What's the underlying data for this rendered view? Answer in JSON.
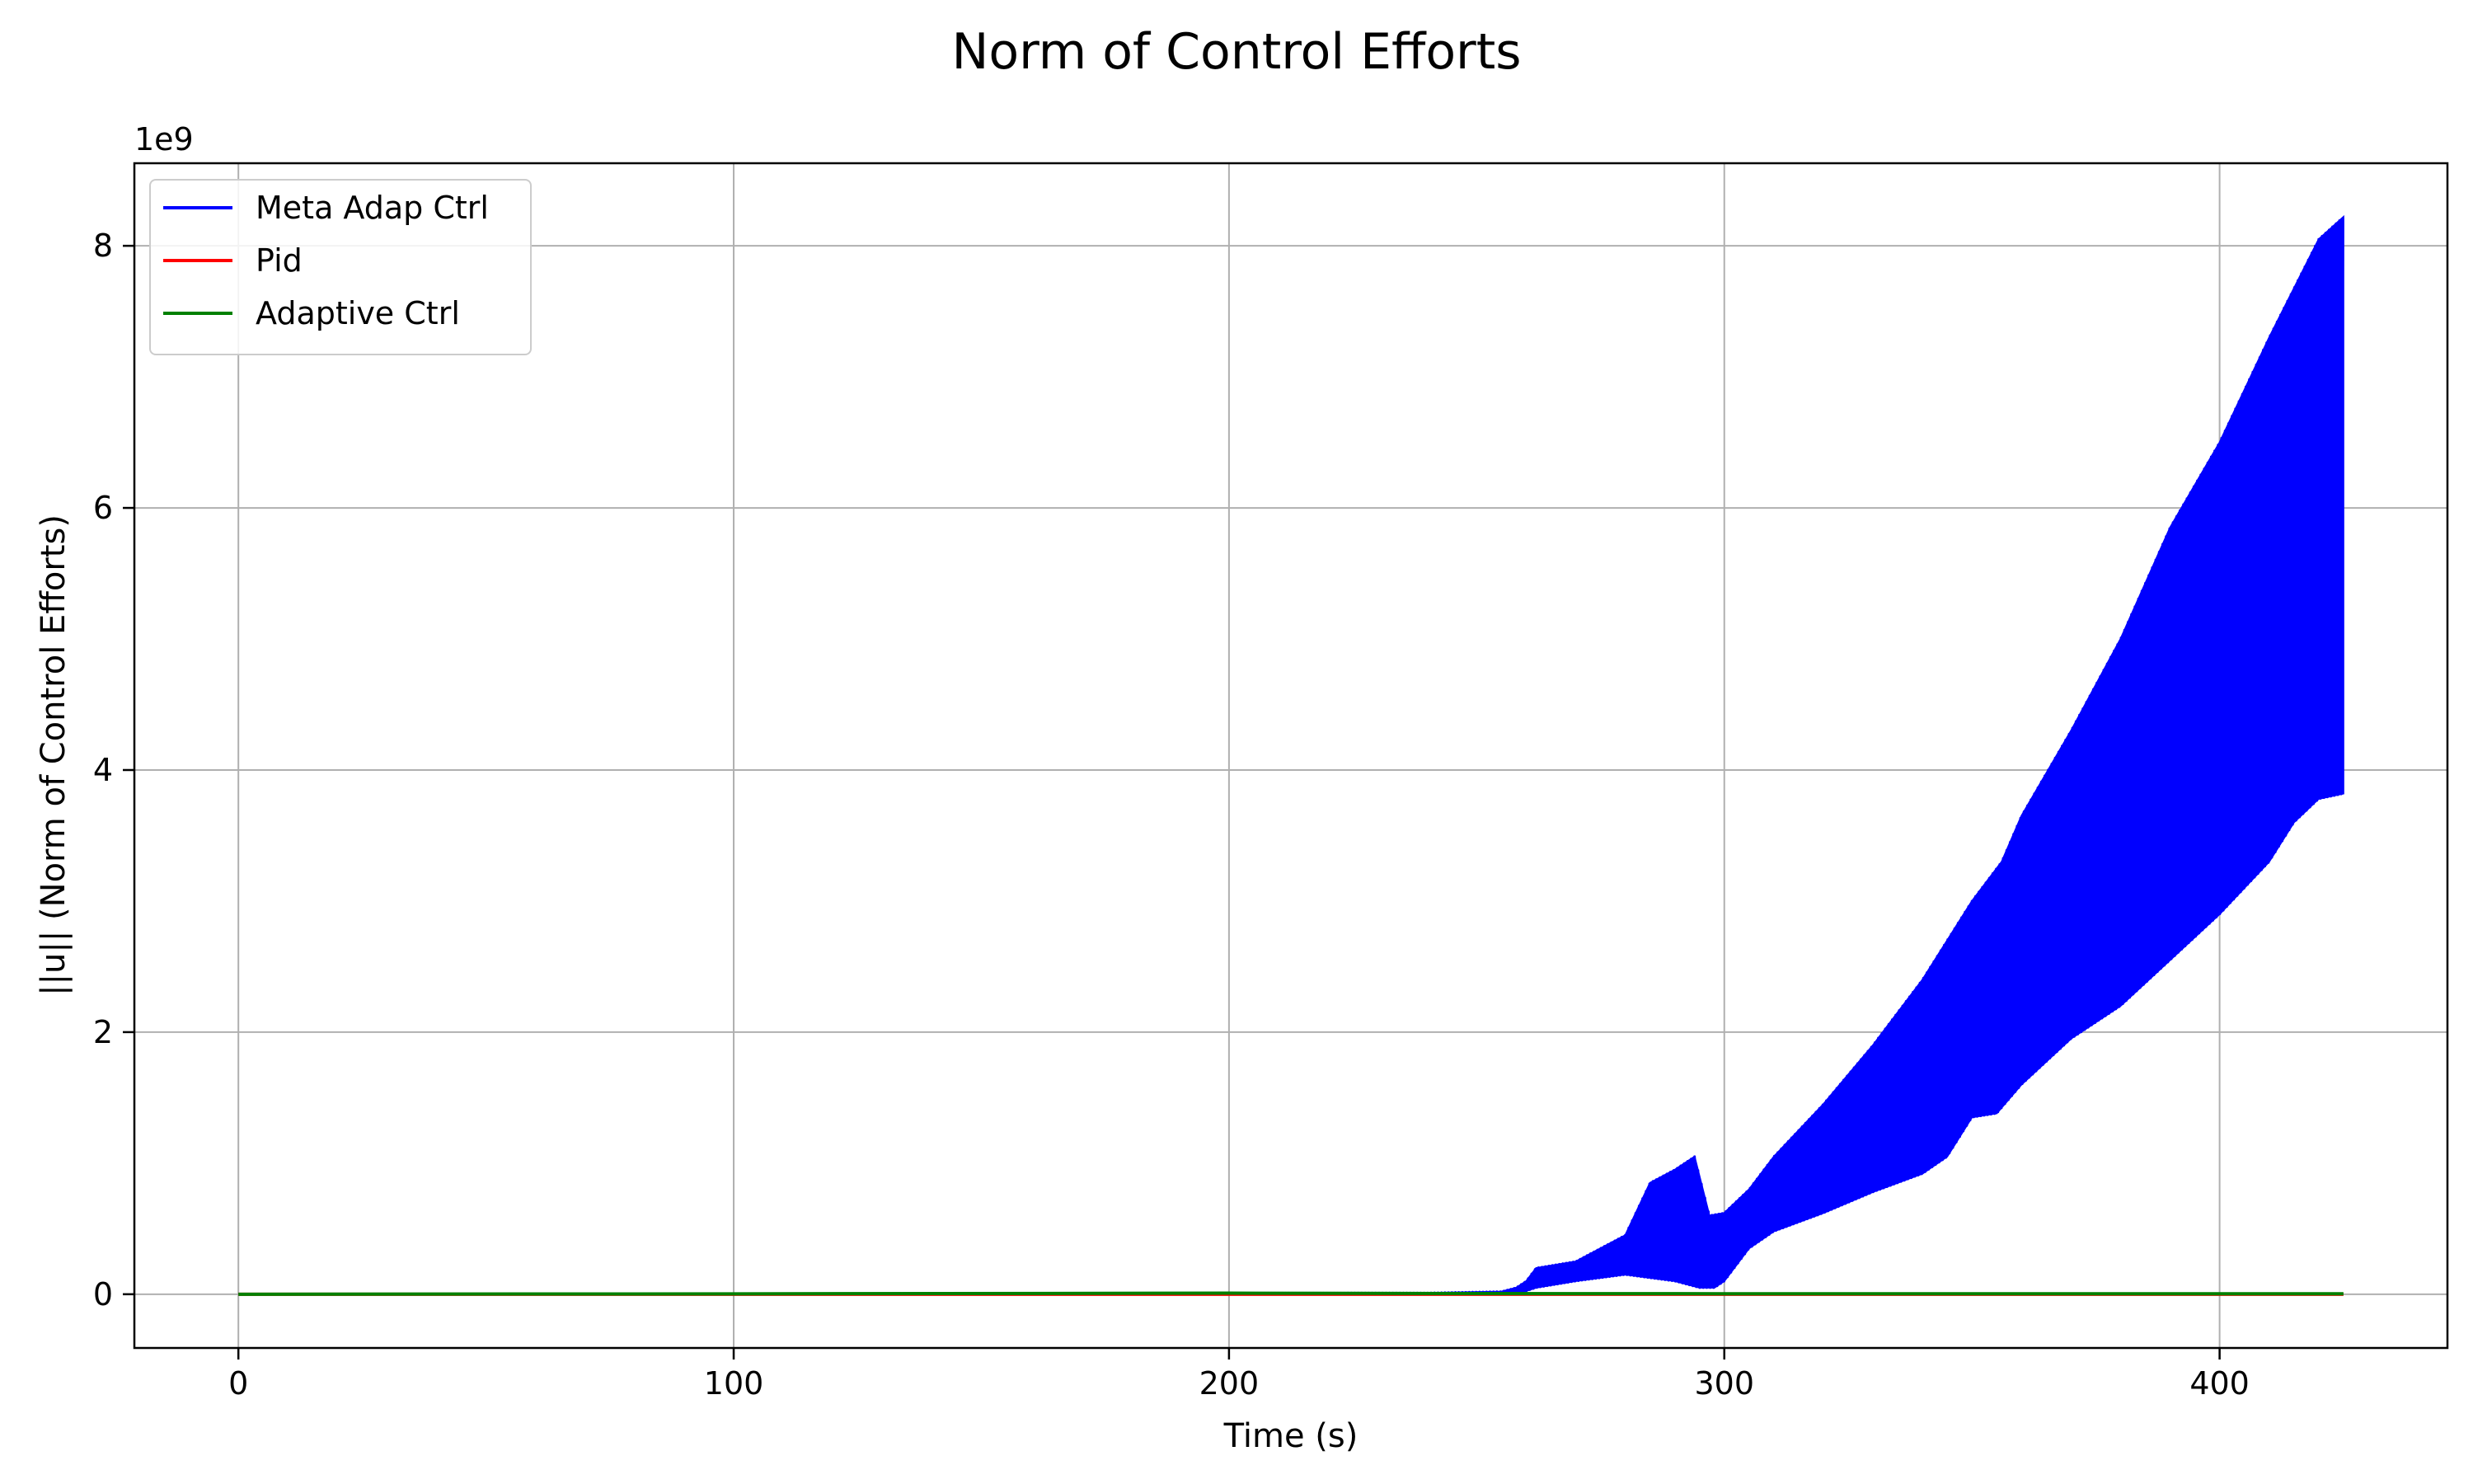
{
  "chart_data": {
    "type": "line",
    "title": "Norm of Control Efforts",
    "xlabel": "Time (s)",
    "ylabel": "||u|| (Norm of Control Efforts)",
    "y_offset_text": "1e9",
    "xlim": [
      -21,
      446
    ],
    "ylim": [
      -0.41,
      8.63
    ],
    "x_ticks": [
      0,
      100,
      200,
      300,
      400
    ],
    "x_tick_labels": [
      "0",
      "100",
      "200",
      "300",
      "400"
    ],
    "y_ticks": [
      0,
      2,
      4,
      6,
      8
    ],
    "y_tick_labels": [
      "0",
      "2",
      "4",
      "6",
      "8"
    ],
    "y_scale_factor": 1000000000,
    "grid": true,
    "legend_position": "upper-left",
    "series": [
      {
        "name": "Meta Adap Ctrl",
        "color": "#0000ff",
        "style": "oscillating-envelope",
        "upper_envelope": [
          [
            0,
            0
          ],
          [
            240,
            0.01
          ],
          [
            255,
            0.02
          ],
          [
            258,
            0.05
          ],
          [
            260,
            0.1
          ],
          [
            262,
            0.2
          ],
          [
            270,
            0.25
          ],
          [
            275,
            0.35
          ],
          [
            280,
            0.45
          ],
          [
            285,
            0.85
          ],
          [
            290,
            0.95
          ],
          [
            294,
            1.05
          ],
          [
            297,
            0.6
          ],
          [
            300,
            0.62
          ],
          [
            305,
            0.8
          ],
          [
            310,
            1.05
          ],
          [
            320,
            1.45
          ],
          [
            330,
            1.9
          ],
          [
            340,
            2.4
          ],
          [
            350,
            3.0
          ],
          [
            356,
            3.3
          ],
          [
            360,
            3.65
          ],
          [
            370,
            4.3
          ],
          [
            380,
            5.0
          ],
          [
            390,
            5.85
          ],
          [
            400,
            6.5
          ],
          [
            410,
            7.3
          ],
          [
            420,
            8.05
          ],
          [
            425,
            8.22
          ]
        ],
        "lower_envelope": [
          [
            0,
            0
          ],
          [
            258,
            0
          ],
          [
            262,
            0.05
          ],
          [
            270,
            0.1
          ],
          [
            280,
            0.15
          ],
          [
            290,
            0.1
          ],
          [
            295,
            0.05
          ],
          [
            298,
            0.05
          ],
          [
            300,
            0.1
          ],
          [
            302,
            0.2
          ],
          [
            305,
            0.35
          ],
          [
            310,
            0.48
          ],
          [
            320,
            0.62
          ],
          [
            330,
            0.78
          ],
          [
            340,
            0.92
          ],
          [
            345,
            1.05
          ],
          [
            350,
            1.35
          ],
          [
            355,
            1.38
          ],
          [
            360,
            1.6
          ],
          [
            370,
            1.95
          ],
          [
            380,
            2.2
          ],
          [
            390,
            2.55
          ],
          [
            400,
            2.9
          ],
          [
            410,
            3.3
          ],
          [
            415,
            3.6
          ],
          [
            420,
            3.78
          ],
          [
            425,
            3.82
          ]
        ]
      },
      {
        "name": "Pid",
        "color": "#ff0000",
        "points": [
          [
            0,
            0
          ],
          [
            425,
            0
          ]
        ]
      },
      {
        "name": "Adaptive Ctrl",
        "color": "#008000",
        "points": [
          [
            0,
            0
          ],
          [
            100,
            0.003
          ],
          [
            200,
            0.008
          ],
          [
            250,
            0.005
          ],
          [
            300,
            0.004
          ],
          [
            425,
            0.004
          ]
        ]
      }
    ]
  }
}
